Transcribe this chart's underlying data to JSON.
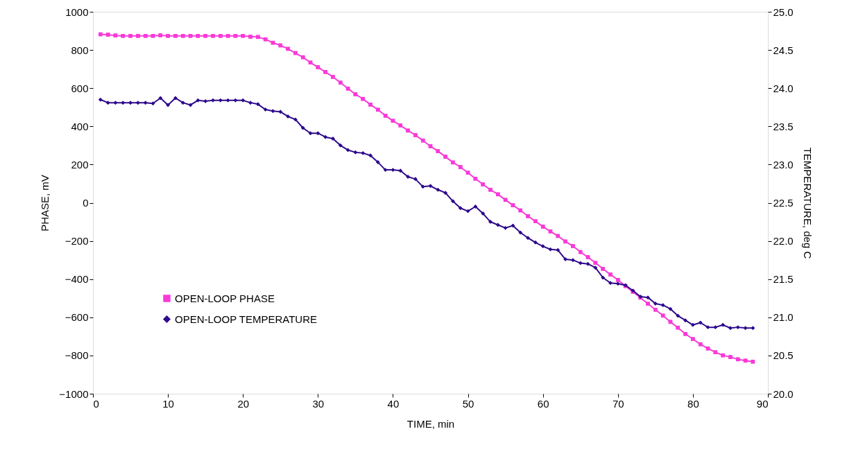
{
  "chart_data": {
    "type": "line",
    "xlabel": "TIME, min",
    "ylabel": "PHASE, mV",
    "y2label": "TEMPERATURE, deg C",
    "x": [
      1,
      2,
      3,
      4,
      5,
      6,
      7,
      8,
      9,
      10,
      11,
      12,
      13,
      14,
      15,
      16,
      17,
      18,
      19,
      20,
      21,
      22,
      23,
      24,
      25,
      26,
      27,
      28,
      29,
      30,
      31,
      32,
      33,
      34,
      35,
      36,
      37,
      38,
      39,
      40,
      41,
      42,
      43,
      44,
      45,
      46,
      47,
      48,
      49,
      50,
      51,
      52,
      53,
      54,
      55,
      56,
      57,
      58,
      59,
      60,
      61,
      62,
      63,
      64,
      65,
      66,
      67,
      68,
      69,
      70,
      71,
      72,
      73,
      74,
      75,
      76,
      77,
      78,
      79,
      80,
      81,
      82,
      83,
      84,
      85,
      86,
      87,
      88
    ],
    "series": [
      {
        "name": "OPEN-LOOP PHASE",
        "color": "#f939d8",
        "marker": "square",
        "values": [
          882,
          880,
          876,
          874,
          874,
          874,
          874,
          874,
          877,
          874,
          874,
          874,
          874,
          874,
          874,
          874,
          874,
          874,
          874,
          874,
          870,
          868,
          856,
          838,
          824,
          806,
          784,
          762,
          734,
          710,
          685,
          659,
          629,
          598,
          568,
          544,
          514,
          487,
          456,
          429,
          405,
          378,
          354,
          326,
          296,
          270,
          241,
          211,
          187,
          157,
          126,
          96,
          68,
          44,
          15,
          -13,
          -40,
          -70,
          -97,
          -125,
          -150,
          -174,
          -203,
          -227,
          -258,
          -285,
          -315,
          -346,
          -376,
          -404,
          -436,
          -466,
          -497,
          -529,
          -560,
          -591,
          -624,
          -654,
          -687,
          -714,
          -741,
          -763,
          -783,
          -799,
          -808,
          -820,
          -827,
          -832
        ]
      },
      {
        "name": "OPEN-LOOP TEMPERATURE",
        "color": "#2e0a8c",
        "marker": "diamond",
        "axis": "y2",
        "values": [
          23.85,
          23.81,
          23.81,
          23.81,
          23.81,
          23.81,
          23.81,
          23.8,
          23.87,
          23.78,
          23.87,
          23.81,
          23.78,
          23.84,
          23.83,
          23.84,
          23.84,
          23.84,
          23.84,
          23.84,
          23.81,
          23.79,
          23.72,
          23.7,
          23.69,
          23.63,
          23.59,
          23.48,
          23.41,
          23.41,
          23.36,
          23.34,
          23.25,
          23.19,
          23.16,
          23.15,
          23.12,
          23.03,
          22.93,
          22.93,
          22.92,
          22.84,
          22.81,
          22.71,
          22.72,
          22.67,
          22.63,
          22.52,
          22.43,
          22.39,
          22.45,
          22.36,
          22.25,
          22.21,
          22.17,
          22.2,
          22.11,
          22.04,
          21.98,
          21.93,
          21.89,
          21.88,
          21.76,
          21.75,
          21.71,
          21.7,
          21.65,
          21.52,
          21.45,
          21.44,
          21.42,
          21.35,
          21.27,
          21.26,
          21.18,
          21.16,
          21.11,
          21.02,
          20.96,
          20.9,
          20.93,
          20.87,
          20.87,
          20.9,
          20.86,
          20.87,
          20.86,
          20.86
        ]
      }
    ],
    "xlim": [
      0,
      90
    ],
    "xticks": [
      0,
      10,
      20,
      30,
      40,
      50,
      60,
      70,
      80,
      90
    ],
    "ylim": [
      -1000,
      1000
    ],
    "yticks": [
      {
        "value": -1000,
        "label": "−1000"
      },
      {
        "value": -800,
        "label": "−800"
      },
      {
        "value": -600,
        "label": "−600"
      },
      {
        "value": -400,
        "label": "−400"
      },
      {
        "value": -200,
        "label": "−200"
      },
      0,
      200,
      400,
      600,
      800,
      1000
    ],
    "y2lim": [
      20,
      25
    ],
    "y2ticks": [
      {
        "value": 20,
        "label": "20.0"
      },
      {
        "value": 20.5,
        "label": "20.5"
      },
      {
        "value": 21,
        "label": "21.0"
      },
      {
        "value": 21.5,
        "label": "21.5"
      },
      {
        "value": 22,
        "label": "22.0"
      },
      {
        "value": 22.5,
        "label": "22.5"
      },
      {
        "value": 23,
        "label": "23.0"
      },
      {
        "value": 23.5,
        "label": "23.5"
      },
      {
        "value": 24,
        "label": "24.0"
      },
      {
        "value": 24.5,
        "label": "24.5"
      },
      {
        "value": 25,
        "label": "25.0"
      }
    ],
    "grid": false,
    "legend": "bottom left",
    "line_style": "solid"
  }
}
